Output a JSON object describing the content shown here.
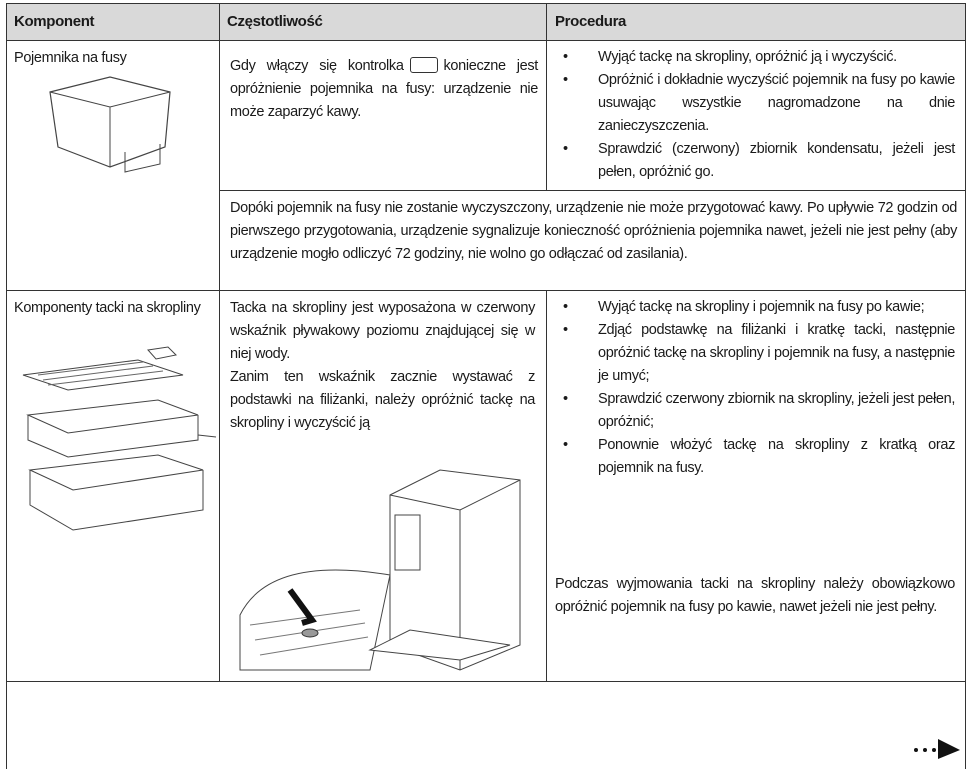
{
  "table": {
    "header": [
      "Komponent",
      "Częstotliwość",
      "Procedura"
    ],
    "rows": [
      {
        "component": "Pojemnika na fusy",
        "frequency": [
          "Gdy włączy się kontrolka",
          "konieczne jest opróżnienie pojemnika na fusy: urządzenie nie może zaparzyć kawy."
        ],
        "procedure": [
          "Wyjąć tackę na skropliny, opróżnić ją i wyczyścić.",
          "Opróżnić i dokładnie wyczyścić pojemnik na fusy po kawie usuwając wszystkie nagromadzone na dnie zanieczyszczenia.",
          "Sprawdzić (czerwony) zbiornik kondensatu, jeżeli jest pełen, opróżnić go."
        ],
        "note": "Dopóki pojemnik na fusy nie zostanie wyczyszczony, urządzenie nie może przygotować kawy. Po upływie 72 godzin od pierwszego przygotowania, urządzenie sygnalizuje konieczność opróżnienia pojemnika nawet, jeżeli nie jest pełny (aby urządzenie mogło odliczyć 72 godziny, nie wolno go odłączać od zasilania)."
      },
      {
        "component": "Komponenty tacki na skropliny",
        "frequency": [
          "Tacka na skropliny jest wyposażona w czerwony wskaźnik pływakowy poziomu znajdującej się w niej wody.",
          "Zanim ten wskaźnik zacznie wystawać z podstawki na filiżanki, należy opróżnić tackę na skropliny i wyczyścić ją"
        ],
        "procedure": [
          "Wyjąć tackę na skropliny i pojemnik na fusy po kawie;",
          "Zdjąć podstawkę na filiżanki i kratkę tacki, następnie opróżnić tackę na skropliny i pojemnik na fusy, a następnie je umyć;",
          "Sprawdzić czerwony zbiornik na skropliny, jeżeli jest pełen, opróżnić;",
          "Ponownie włożyć tackę na skropliny z kratką oraz pojemnik na fusy."
        ],
        "procedure_note": "Podczas wyjmowania tacki na skropliny należy obowiązkowo opróżnić pojemnik na fusy po kawie, nawet jeżeli nie jest pełny."
      }
    ]
  }
}
